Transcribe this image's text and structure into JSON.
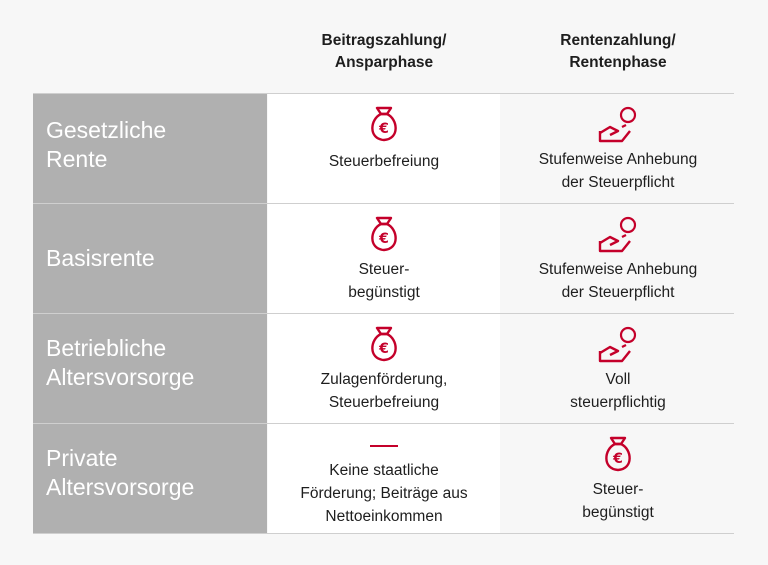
{
  "columns": [
    {
      "line1": "Beitragszahlung/",
      "line2": "Ansparphase"
    },
    {
      "line1": "Rentenzahlung/",
      "line2": "Rentenphase"
    }
  ],
  "accent_color": "#c4002a",
  "rows": [
    {
      "label": [
        "Gesetzliche",
        "Rente"
      ],
      "contribution": {
        "icon": "money-bag-euro-icon",
        "text": [
          "Steuerbefreiung"
        ]
      },
      "payout": {
        "icon": "hand-coin-icon",
        "text": [
          "Stufenweise Anhebung",
          "der Steuerpflicht"
        ]
      }
    },
    {
      "label": [
        "Basisrente"
      ],
      "contribution": {
        "icon": "money-bag-euro-icon",
        "text": [
          "Steuer-",
          "begünstigt"
        ]
      },
      "payout": {
        "icon": "hand-coin-icon",
        "text": [
          "Stufenweise Anhebung",
          "der Steuerpflicht"
        ]
      }
    },
    {
      "label": [
        "Betriebliche",
        "Altersvorsorge"
      ],
      "contribution": {
        "icon": "money-bag-euro-icon",
        "text": [
          "Zulagenförderung,",
          "Steuerbefreiung"
        ]
      },
      "payout": {
        "icon": "hand-coin-icon",
        "text": [
          "Voll",
          "steuerpflichtig"
        ]
      }
    },
    {
      "label": [
        "Private",
        "Altersvorsorge"
      ],
      "contribution": {
        "icon": "dash-icon",
        "text": [
          "Keine staatliche",
          "Förderung; Beiträge aus",
          "Nettoeinkommen"
        ]
      },
      "payout": {
        "icon": "money-bag-euro-icon",
        "text": [
          "Steuer-",
          "begünstigt"
        ]
      }
    }
  ]
}
